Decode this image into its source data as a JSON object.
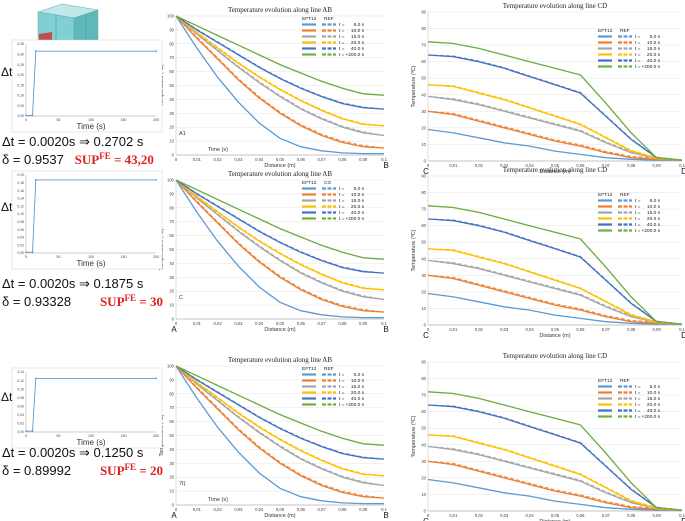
{
  "legend_times": [
    "5.0 s",
    "10.0 s",
    "15.0 s",
    "20.0 s",
    "40.0 s",
    "+200.0 s"
  ],
  "colors": [
    "#5b9bd5",
    "#ed7d31",
    "#a5a5a5",
    "#ffc000",
    "#4472c4",
    "#70ad47"
  ],
  "time_prefix": "t =",
  "rows": [
    {
      "ab": {
        "title": "Temperature evolution along line AB",
        "leg_left": "EFT12",
        "leg_right": "REF",
        "start_label": "",
        "end_label": "B",
        "annot": "A1",
        "time_axis": "Time (s)"
      },
      "cd": {
        "title": "Temperature evolution along line CD",
        "leg_left": "EFT12",
        "leg_right": "REF",
        "start_label": "C",
        "end_label": "D"
      },
      "step": {
        "x_ticks": [
          "0",
          "50",
          "100",
          "150",
          "200"
        ],
        "y_ticks": [
          "0,00",
          "0,05",
          "0,10",
          "0,15",
          "0,20",
          "0,25",
          "0,30",
          "0,35"
        ],
        "xlabel": "Time (s)",
        "ylim": [
          0,
          0.3
        ],
        "xlim": [
          0,
          200
        ],
        "points": [
          [
            0,
            0.002
          ],
          [
            10,
            0.002
          ],
          [
            15,
            0.2702
          ],
          [
            200,
            0.2702
          ]
        ]
      },
      "stat": {
        "line1": "Δt = 0.0020s ⇒ 0.2702 s",
        "line2": "δ = 0.9537",
        "sup": "SUP",
        "sup_fe": "FE",
        "sup_val": " = 43,20"
      },
      "dt_label": "Δt"
    },
    {
      "ab": {
        "title": "Temperature evolution along line AB",
        "leg_left": "EFT12",
        "leg_right": "CG",
        "start_label": "A",
        "end_label": "B",
        "annot": "C",
        "time_axis": ""
      },
      "cd": {
        "title": "Temperature evolution along line CD",
        "leg_left": "EFT12",
        "leg_right": "REF",
        "start_label": "C",
        "end_label": "D"
      },
      "step": {
        "x_ticks": [
          "0",
          "50",
          "100",
          "150",
          "200"
        ],
        "y_ticks": [
          "0,00",
          "0,02",
          "0,04",
          "0,06",
          "0,08",
          "0,10",
          "0,12",
          "0,14",
          "0,16",
          "0,18",
          "0,20"
        ],
        "xlabel": "Time (s)",
        "ylim": [
          0,
          0.2
        ],
        "xlim": [
          0,
          200
        ],
        "points": [
          [
            0,
            0.002
          ],
          [
            10,
            0.002
          ],
          [
            15,
            0.1875
          ],
          [
            200,
            0.1875
          ]
        ]
      },
      "stat": {
        "line1": "Δt = 0.0020s ⇒ 0.1875 s",
        "line2": "δ = 0.93328",
        "sup": "SUP",
        "sup_fe": "FE",
        "sup_val": " = 30"
      },
      "dt_label": "Δt"
    },
    {
      "ab": {
        "title": "Temperature evolution along line AB",
        "leg_left": "EFT12",
        "leg_right": "REF",
        "start_label": "A",
        "end_label": "B",
        "annot": "7t)",
        "time_axis": "Time (s)"
      },
      "cd": {
        "title": "Temperature evolution along line CD",
        "leg_left": "EFT12",
        "leg_right": "REF",
        "start_label": "C",
        "end_label": "D"
      },
      "step": {
        "x_ticks": [
          "0",
          "50",
          "100",
          "150",
          "200"
        ],
        "y_ticks": [
          "0,00",
          "0,02",
          "0,04",
          "0,06",
          "0,08",
          "0,10",
          "0,12",
          "0,14"
        ],
        "xlabel": "Time (s)",
        "ylim": [
          0,
          0.14
        ],
        "xlim": [
          0,
          200
        ],
        "points": [
          [
            0,
            0.002
          ],
          [
            10,
            0.002
          ],
          [
            15,
            0.125
          ],
          [
            200,
            0.125
          ]
        ]
      },
      "stat": {
        "line1": "Δt = 0.0020s ⇒ 0.1250 s",
        "line2": "δ = 0.89992",
        "sup": "SUP",
        "sup_fe": "FE",
        "sup_val": " = 20"
      },
      "dt_label": "Δt"
    }
  ],
  "chart_data": [
    {
      "type": "line",
      "title": "Temperature evolution along line AB",
      "xlabel": "Distance (m)",
      "ylabel": "Temperature (ºC)",
      "xlim": [
        0,
        0.1
      ],
      "ylim": [
        0,
        100
      ],
      "x_ticks": [
        "0",
        "0,01",
        "0,02",
        "0,03",
        "0,04",
        "0,05",
        "0,06",
        "0,07",
        "0,08",
        "0,09",
        "0,1"
      ],
      "y_ticks": [
        "0",
        "10",
        "20",
        "30",
        "40",
        "50",
        "60",
        "70",
        "80",
        "90",
        "100"
      ],
      "x": [
        0,
        0.01,
        0.02,
        0.03,
        0.04,
        0.05,
        0.06,
        0.07,
        0.08,
        0.09,
        0.1
      ],
      "series": [
        {
          "name": "t = 5.0 s",
          "values": [
            100,
            77,
            56,
            38,
            23,
            12,
            6,
            3,
            1.5,
            1,
            1
          ]
        },
        {
          "name": "t = 10.0 s",
          "values": [
            100,
            84,
            69,
            54,
            41,
            30,
            21,
            14,
            9,
            6,
            5
          ]
        },
        {
          "name": "t = 15.0 s",
          "values": [
            100,
            87,
            75,
            63,
            52,
            42,
            33,
            26,
            20,
            16,
            14
          ]
        },
        {
          "name": "t = 20.0 s",
          "values": [
            100,
            88,
            77,
            66,
            56,
            47,
            39,
            32,
            26,
            22,
            21
          ]
        },
        {
          "name": "t = 40.0 s",
          "values": [
            100,
            90,
            81,
            72,
            63,
            55,
            48,
            42,
            37,
            34,
            33
          ]
        },
        {
          "name": "t = +200.0 s",
          "values": [
            100,
            93,
            86,
            79,
            72,
            65,
            59,
            53,
            48,
            44,
            43
          ]
        }
      ]
    },
    {
      "type": "line",
      "title": "Temperature evolution along line CD",
      "xlabel": "Distance (m)",
      "ylabel": "Temperature (ºC)",
      "xlim": [
        0,
        0.1
      ],
      "ylim": [
        0,
        90
      ],
      "x_ticks": [
        "0",
        "0,01",
        "0,02",
        "0,03",
        "0,04",
        "0,05",
        "0,06",
        "0,07",
        "0,08",
        "0,09",
        "0,1"
      ],
      "y_ticks": [
        "0",
        "10",
        "20",
        "30",
        "40",
        "50",
        "60",
        "70",
        "80",
        "90"
      ],
      "x": [
        0,
        0.01,
        0.02,
        0.03,
        0.04,
        0.05,
        0.06,
        0.07,
        0.08,
        0.09,
        0.1
      ],
      "series": [
        {
          "name": "t = 5.0 s",
          "values": [
            19,
            17,
            14,
            11,
            9,
            6,
            4,
            2,
            1,
            0.5,
            0.5
          ]
        },
        {
          "name": "t = 10.0 s",
          "values": [
            30,
            28,
            24,
            20,
            16,
            12,
            9,
            5,
            2,
            1,
            0.5
          ]
        },
        {
          "name": "t = 15.0 s",
          "values": [
            39,
            37,
            34,
            30,
            26,
            22,
            18,
            11,
            5,
            1.5,
            0.5
          ]
        },
        {
          "name": "t = 20.0 s",
          "values": [
            46,
            45,
            41,
            37,
            32,
            27,
            22,
            14,
            6,
            1.5,
            0.5
          ]
        },
        {
          "name": "t = 40.0 s",
          "values": [
            64,
            63,
            60,
            56,
            51,
            46,
            41,
            27,
            13,
            2,
            0.5
          ]
        },
        {
          "name": "t = +200.0 s",
          "values": [
            72,
            71,
            68,
            64,
            60,
            56,
            52,
            35,
            17,
            2,
            0.5
          ]
        }
      ]
    }
  ]
}
